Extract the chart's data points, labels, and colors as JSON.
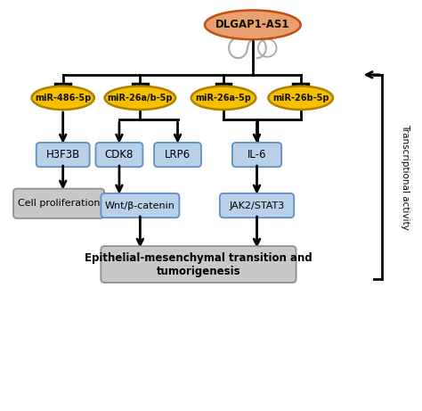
{
  "background_color": "#ffffff",
  "dlgap1_label": "DLGAP1-AS1",
  "dlgap1_color": "#e8a070",
  "dlgap1_edge": "#c05010",
  "mir_color": "#f5c000",
  "mir_edge": "#b08000",
  "mir_labels": [
    "miR-486-5p",
    "miR-26a/b-5p",
    "miR-26a-5p",
    "miR-26b-5p"
  ],
  "box_blue_color": "#b8d0e8",
  "box_blue_edge": "#6090c0",
  "box_gray_color": "#c8c8c8",
  "box_gray_edge": "#909090",
  "cell_prolif": "Cell proliferation",
  "intermediate_left": "Wnt/β-catenin",
  "intermediate_right": "JAK2/STAT3",
  "emt_label": "Epithelial-mesenchymal transition and\ntumorigenesis",
  "transcriptional": "Transcriptional activity"
}
